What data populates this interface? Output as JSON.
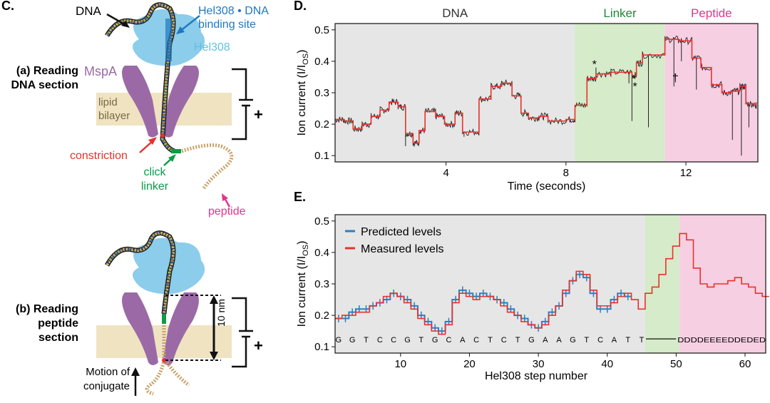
{
  "figure": {
    "panel_c": "C.",
    "panel_d": "D.",
    "panel_e": "E."
  },
  "panel_c": {
    "label_dna": "DNA",
    "label_hel_site": "Hel308 • DNA binding site",
    "label_hel308": "Hel308",
    "label_mspa": "MspA",
    "label_lipid": "lipid bilayer",
    "label_constriction": "constriction",
    "label_click": "click linker",
    "label_peptide": "peptide",
    "state_a": "(a) Reading DNA section",
    "state_b": "(b) Reading peptide section",
    "label_10nm": "10 nm",
    "label_motion": "Motion of conjugate",
    "plus_a": "+",
    "plus_b": "+",
    "colors": {
      "hel308": "#7ec8e8",
      "mspa": "#9b6aa6",
      "lipid": "#efe3c2",
      "constriction": "#e8322d",
      "click": "#0c9b48",
      "peptide": "#e0368c",
      "hel_site": "#1f78c1"
    }
  },
  "chart_data": [
    {
      "type": "line",
      "panel": "D.",
      "xlabel": "Time (seconds)",
      "ylabel": "Ion current (I/I_OS)",
      "xlim": [
        0.3,
        14.4
      ],
      "ylim": [
        0.08,
        0.52
      ],
      "xticks": [
        4,
        8,
        12
      ],
      "yticks": [
        0.1,
        0.2,
        0.3,
        0.4,
        0.5
      ],
      "regions": [
        {
          "label": "DNA",
          "from": 0.3,
          "to": 8.3,
          "color": "#e6e6e6",
          "label_color": "#333333"
        },
        {
          "label": "Linker",
          "from": 8.3,
          "to": 11.3,
          "color": "#d6ebc9",
          "label_color": "#1f8a3a"
        },
        {
          "label": "Peptide",
          "from": 11.3,
          "to": 14.4,
          "color": "#f7cfe3",
          "label_color": "#e0368c"
        }
      ],
      "annotations": [
        {
          "text": "*",
          "x": 8.95,
          "y": 0.378
        },
        {
          "text": "*",
          "x": 10.3,
          "y": 0.308
        },
        {
          "text": "†",
          "x": 11.65,
          "y": 0.335
        }
      ],
      "series": [
        {
          "color": "#e8322d",
          "steps": [
            [
              0.3,
              0.215
            ],
            [
              0.6,
              0.21
            ],
            [
              0.9,
              0.185
            ],
            [
              1.2,
              0.2
            ],
            [
              1.5,
              0.225
            ],
            [
              1.8,
              0.245
            ],
            [
              2.1,
              0.27
            ],
            [
              2.4,
              0.255
            ],
            [
              2.65,
              0.17
            ],
            [
              2.9,
              0.14
            ],
            [
              3.1,
              0.18
            ],
            [
              3.3,
              0.24
            ],
            [
              3.65,
              0.225
            ],
            [
              3.95,
              0.2
            ],
            [
              4.3,
              0.235
            ],
            [
              4.55,
              0.175
            ],
            [
              5.1,
              0.28
            ],
            [
              5.5,
              0.32
            ],
            [
              5.85,
              0.33
            ],
            [
              6.2,
              0.29
            ],
            [
              6.5,
              0.235
            ],
            [
              6.75,
              0.22
            ],
            [
              7.1,
              0.225
            ],
            [
              7.4,
              0.21
            ],
            [
              8.0,
              0.215
            ],
            [
              8.3,
              0.26
            ],
            [
              8.7,
              0.345
            ],
            [
              9.0,
              0.36
            ],
            [
              9.5,
              0.365
            ],
            [
              10.2,
              0.355
            ],
            [
              10.35,
              0.395
            ],
            [
              10.55,
              0.42
            ],
            [
              11.3,
              0.47
            ],
            [
              11.75,
              0.465
            ],
            [
              12.2,
              0.41
            ],
            [
              12.5,
              0.38
            ],
            [
              12.85,
              0.325
            ],
            [
              13.2,
              0.3
            ],
            [
              13.55,
              0.305
            ],
            [
              13.8,
              0.32
            ],
            [
              14.0,
              0.265
            ],
            [
              14.3,
              0.26
            ]
          ]
        },
        {
          "color": "#111111",
          "spikes": [
            {
              "x": 2.65,
              "y": 0.13
            },
            {
              "x": 4.6,
              "y": 0.16
            },
            {
              "x": 8.75,
              "y": 0.34
            },
            {
              "x": 9.0,
              "y": 0.38
            },
            {
              "x": 10.1,
              "y": 0.33
            },
            {
              "x": 10.2,
              "y": 0.21
            },
            {
              "x": 10.75,
              "y": 0.19
            },
            {
              "x": 11.6,
              "y": 0.32
            },
            {
              "x": 11.85,
              "y": 0.4
            },
            {
              "x": 12.35,
              "y": 0.31
            },
            {
              "x": 13.55,
              "y": 0.15
            },
            {
              "x": 13.85,
              "y": 0.1
            },
            {
              "x": 14.1,
              "y": 0.19
            }
          ]
        }
      ]
    },
    {
      "type": "line",
      "panel": "E.",
      "xlabel": "Hel308 step number",
      "ylabel": "Ion current (I/I_OS)",
      "xlim": [
        0.5,
        63
      ],
      "ylim": [
        0.08,
        0.52
      ],
      "xticks": [
        10,
        20,
        30,
        40,
        50,
        60
      ],
      "yticks": [
        0.1,
        0.2,
        0.3,
        0.4,
        0.5
      ],
      "regions": [
        {
          "from": 0.5,
          "to": 45.5,
          "color": "#e6e6e6"
        },
        {
          "from": 45.5,
          "to": 50.5,
          "color": "#d6ebc9"
        },
        {
          "from": 50.5,
          "to": 63,
          "color": "#f7cfe3"
        }
      ],
      "legend": {
        "position": "top-left"
      },
      "sequence": {
        "dna_bases": [
          "G",
          "G",
          "T",
          "C",
          "C",
          "G",
          "T",
          "G",
          "C",
          "A",
          "C",
          "T",
          "C",
          "T",
          "G",
          "A",
          "A",
          "G",
          "T",
          "C",
          "A",
          "T",
          "T"
        ],
        "tail": "DDDDEEEEDDEDED",
        "start_step": 1,
        "step_spacing": 2,
        "tail_from": 50.2,
        "tail_to": 63.0,
        "y": 0.125
      },
      "series": [
        {
          "name": "Predicted levels",
          "color": "#2f7fc1",
          "values": [
            0.19,
            0.19,
            0.21,
            0.22,
            0.22,
            0.23,
            0.24,
            0.25,
            0.27,
            0.26,
            0.25,
            0.23,
            0.2,
            0.18,
            0.16,
            0.15,
            0.18,
            0.25,
            0.28,
            0.27,
            0.26,
            0.27,
            0.26,
            0.25,
            0.24,
            0.22,
            0.2,
            0.19,
            0.17,
            0.16,
            0.18,
            0.21,
            0.23,
            0.27,
            0.31,
            0.33,
            0.32,
            0.27,
            0.22,
            0.22,
            0.25,
            0.27,
            0.26
          ]
        },
        {
          "name": "Measured levels",
          "color": "#e8322d",
          "values": [
            0.19,
            0.2,
            0.2,
            0.21,
            0.21,
            0.23,
            0.24,
            0.26,
            0.27,
            0.26,
            0.24,
            0.22,
            0.19,
            0.17,
            0.15,
            0.14,
            0.17,
            0.24,
            0.27,
            0.26,
            0.25,
            0.26,
            0.26,
            0.25,
            0.23,
            0.21,
            0.2,
            0.18,
            0.17,
            0.16,
            0.17,
            0.2,
            0.23,
            0.28,
            0.31,
            0.34,
            0.33,
            0.28,
            0.23,
            0.23,
            0.24,
            0.26,
            0.27,
            0.25,
            0.22,
            0.27,
            0.29,
            0.33,
            0.38,
            0.42,
            0.46,
            0.44,
            0.35,
            0.3,
            0.29,
            0.3,
            0.3,
            0.31,
            0.32,
            0.3,
            0.29,
            0.27,
            0.26
          ]
        }
      ]
    }
  ]
}
